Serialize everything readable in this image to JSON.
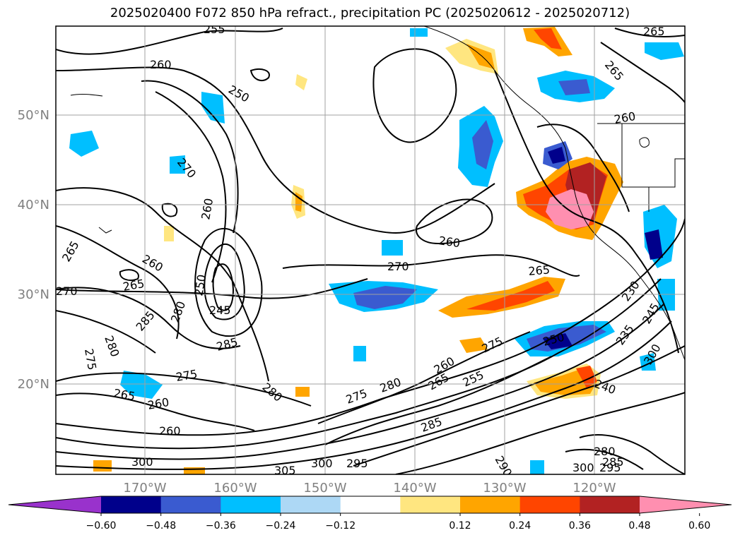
{
  "title": "2025020400 F072 850 hPa refract., precipitation PC (2025020612 - 2025020712)",
  "lat_labels": [
    "50°N",
    "40°N",
    "30°N",
    "20°N"
  ],
  "lon_labels": [
    "170°W",
    "160°W",
    "150°W",
    "140°W",
    "130°W",
    "120°W"
  ],
  "colorbar": {
    "colors": [
      "#9932cc",
      "#00008b",
      "#3a5bd0",
      "#00bfff",
      "#add8f5",
      "#ffffff",
      "#ffe680",
      "#ffa500",
      "#ff4500",
      "#b22222",
      "#ff8fb0"
    ],
    "ticks": [
      "−0.60",
      "−0.48",
      "−0.36",
      "−0.24",
      "−0.12",
      "0.12",
      "0.24",
      "0.36",
      "0.48",
      "0.60"
    ]
  },
  "contour_labels": [
    "255",
    "260",
    "250",
    "265",
    "270",
    "260",
    "270",
    "265",
    "260",
    "260",
    "265",
    "270",
    "265",
    "265",
    "260",
    "245",
    "250",
    "280",
    "285",
    "275",
    "280",
    "285",
    "275",
    "265",
    "260",
    "260",
    "300",
    "305",
    "300",
    "295",
    "280",
    "275",
    "280",
    "265",
    "255",
    "275",
    "260",
    "250",
    "235",
    "230",
    "245",
    "300",
    "280",
    "295",
    "300",
    "290",
    "285",
    "285",
    "240"
  ]
}
